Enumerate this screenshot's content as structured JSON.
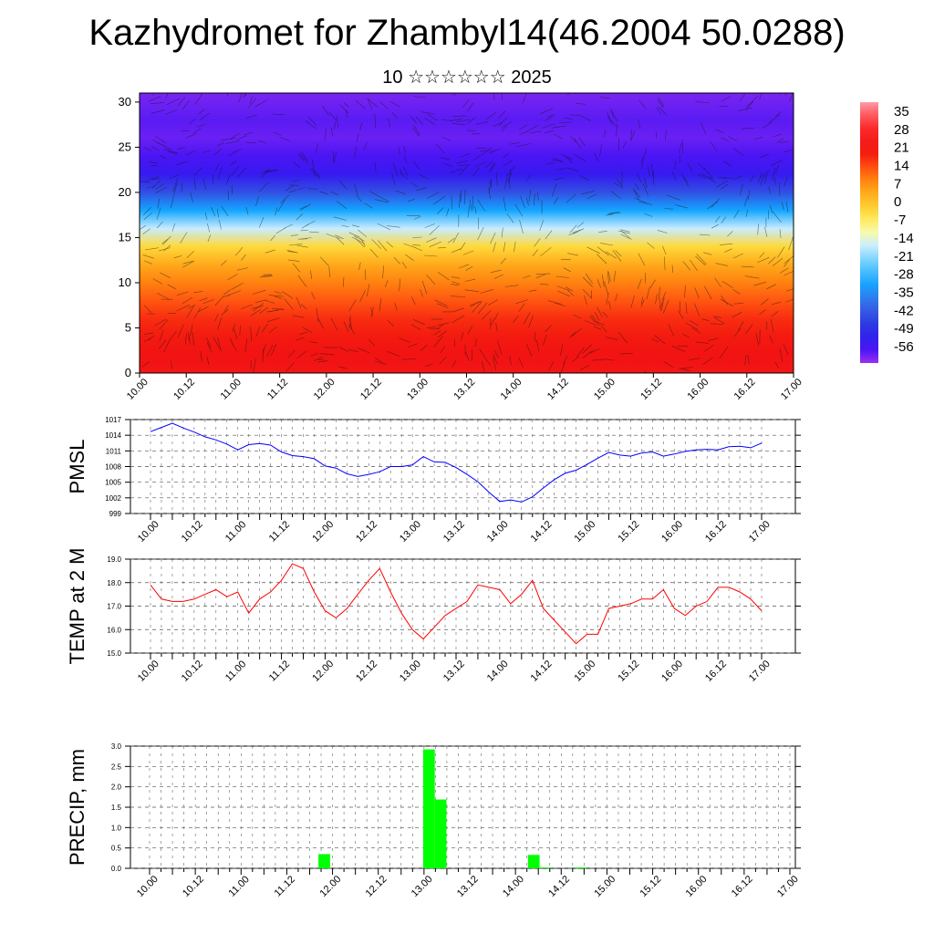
{
  "page": {
    "title": "Kazhydromet for Zhambyl14(46.2004 50.0288)",
    "subtitle": "10 ☆☆☆☆☆☆ 2025"
  },
  "chart_data": [
    {
      "type": "heatmap",
      "title": "",
      "xlabel": "",
      "ylabel": "",
      "x_tick_labels": [
        "10.00",
        "10.12",
        "11.00",
        "11.12",
        "12.00",
        "12.12",
        "13.00",
        "13.12",
        "14.00",
        "14.12",
        "15.00",
        "15.12",
        "16.00",
        "16.12",
        "17.00"
      ],
      "y_ticks": [
        0,
        5,
        10,
        15,
        20,
        25,
        30
      ],
      "ylim": [
        0,
        31
      ],
      "colorbar_labels": [
        "35",
        "28",
        "21",
        "14",
        "7",
        "0",
        "-7",
        "-14",
        "-21",
        "-28",
        "-35",
        "-42",
        "-49",
        "-56"
      ],
      "colorbar_range": [
        -60,
        38
      ],
      "overlay": "wind vectors",
      "vertical_temperature_profile": {
        "levels": [
          0,
          2,
          4,
          6,
          8,
          10,
          12,
          14,
          16,
          18,
          20,
          22,
          24,
          26,
          28,
          31
        ],
        "values": [
          22,
          21,
          19,
          17,
          13,
          9,
          4,
          -3,
          -16,
          -30,
          -42,
          -52,
          -55,
          -57,
          -56,
          -58
        ]
      }
    },
    {
      "type": "line",
      "ylabel": "PMSL",
      "ylim": [
        999,
        1017
      ],
      "y_tick_labels": [
        "1017",
        "1014",
        "1011",
        "1008",
        "1005",
        "1002",
        "999"
      ],
      "x_tick_labels": [
        "10.00",
        "10.12",
        "11.00",
        "11.12",
        "12.00",
        "12.12",
        "13.00",
        "13.12",
        "14.00",
        "14.12",
        "15.00",
        "15.12",
        "16.00",
        "16.12",
        "17.00"
      ],
      "series": [
        {
          "color": "#0000ff",
          "values": [
            1014.7,
            1015.5,
            1016.3,
            1015.4,
            1014.6,
            1013.7,
            1013.1,
            1012.3,
            1011.2,
            1012.2,
            1012.4,
            1012.1,
            1010.8,
            1010.1,
            1009.9,
            1009.5,
            1008.1,
            1007.7,
            1006.6,
            1006.1,
            1006.5,
            1007.0,
            1008.0,
            1008.0,
            1008.3,
            1009.9,
            1008.9,
            1008.8,
            1007.8,
            1006.5,
            1005.1,
            1003.1,
            1001.3,
            1001.6,
            1001.2,
            1002.2,
            1003.9,
            1005.5,
            1006.7,
            1007.3,
            1008.4,
            1009.6,
            1010.7,
            1010.2,
            1010.0,
            1010.6,
            1010.8,
            1010.0,
            1010.4,
            1010.9,
            1011.2,
            1011.3,
            1011.2,
            1011.8,
            1011.9,
            1011.6,
            1012.5
          ]
        }
      ]
    },
    {
      "type": "line",
      "ylabel": "TEMP at 2 M",
      "ylim": [
        15.0,
        19.0
      ],
      "y_tick_labels": [
        "19.0",
        "18.0",
        "17.0",
        "16.0",
        "15.0"
      ],
      "x_tick_labels": [
        "10.00",
        "10.12",
        "11.00",
        "11.12",
        "12.00",
        "12.12",
        "13.00",
        "13.12",
        "14.00",
        "14.12",
        "15.00",
        "15.12",
        "16.00",
        "16.12",
        "17.00"
      ],
      "series": [
        {
          "color": "#ff0000",
          "values": [
            17.9,
            17.3,
            17.2,
            17.2,
            17.3,
            17.5,
            17.7,
            17.4,
            17.6,
            16.7,
            17.3,
            17.6,
            18.1,
            18.8,
            18.6,
            17.6,
            16.8,
            16.5,
            16.9,
            17.5,
            18.1,
            18.6,
            17.6,
            16.7,
            16.0,
            15.6,
            16.1,
            16.6,
            16.9,
            17.2,
            17.9,
            17.8,
            17.7,
            17.1,
            17.5,
            18.1,
            16.9,
            16.4,
            15.9,
            15.4,
            15.8,
            15.8,
            16.9,
            17.0,
            17.1,
            17.3,
            17.3,
            17.7,
            16.9,
            16.6,
            17.0,
            17.2,
            17.8,
            17.8,
            17.6,
            17.3,
            16.8
          ]
        }
      ]
    },
    {
      "type": "bar",
      "ylabel": "PRECIP, mm",
      "ylim": [
        0.0,
        3.0
      ],
      "y_tick_labels": [
        "3.0",
        "2.5",
        "2.0",
        "1.5",
        "1.0",
        "0.5",
        "0.0"
      ],
      "x_tick_labels": [
        "10.00",
        "10.12",
        "11.00",
        "11.12",
        "12.00",
        "12.12",
        "13.00",
        "13.12",
        "14.00",
        "14.12",
        "15.00",
        "15.12",
        "16.00",
        "16.12",
        "17.00"
      ],
      "bar_color": "#00ff00",
      "values": [
        0,
        0,
        0,
        0,
        0,
        0,
        0,
        0,
        0,
        0,
        0,
        0,
        0,
        0,
        0,
        0.35,
        0,
        0,
        0,
        0,
        0,
        0,
        0,
        0,
        2.92,
        1.69,
        0,
        0,
        0,
        0,
        0,
        0,
        0,
        0.33,
        0.02,
        0,
        0,
        0.02,
        0,
        0,
        0,
        0,
        0,
        0,
        0,
        0,
        0,
        0,
        0,
        0,
        0,
        0,
        0,
        0,
        0,
        0
      ]
    }
  ]
}
